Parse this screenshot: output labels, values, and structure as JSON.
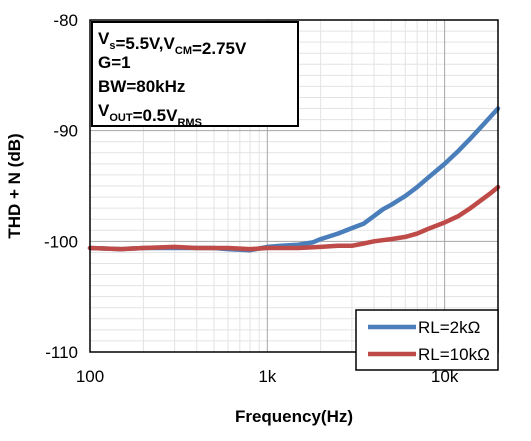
{
  "chart_data": {
    "type": "line",
    "xlabel": "Frequency(Hz)",
    "ylabel": "THD + N (dB)",
    "x_scale": "log",
    "xlim": [
      100,
      20000
    ],
    "ylim": [
      -110,
      -80
    ],
    "x_ticks": [
      {
        "value": 100,
        "label": "100"
      },
      {
        "value": 1000,
        "label": "1k"
      },
      {
        "value": 10000,
        "label": "10k"
      }
    ],
    "y_ticks": [
      {
        "value": -80,
        "label": "-80"
      },
      {
        "value": -90,
        "label": "-90"
      },
      {
        "value": -100,
        "label": "-100"
      },
      {
        "value": -110,
        "label": "-110"
      }
    ],
    "grid": "major and minor",
    "legend_position": "bottom-right",
    "annotation": {
      "lines": [
        [
          {
            "t": "V"
          },
          {
            "t": "s",
            "sub": true
          },
          {
            "t": "=5.5V,V"
          },
          {
            "t": "CM",
            "sub": true
          },
          {
            "t": "=2.75V"
          }
        ],
        [
          {
            "t": "G=1"
          }
        ],
        [
          {
            "t": "BW=80kHz"
          }
        ],
        [
          {
            "t": "V"
          },
          {
            "t": "OUT",
            "sub": true
          },
          {
            "t": "=0.5V"
          },
          {
            "t": "RMS",
            "sub": true
          }
        ]
      ]
    },
    "series": [
      {
        "name": "RL=2kΩ",
        "color": "#4a7ebb",
        "points": [
          [
            100,
            -100.6
          ],
          [
            150,
            -100.7
          ],
          [
            200,
            -100.6
          ],
          [
            300,
            -100.6
          ],
          [
            400,
            -100.6
          ],
          [
            500,
            -100.6
          ],
          [
            600,
            -100.7
          ],
          [
            800,
            -100.8
          ],
          [
            1000,
            -100.5
          ],
          [
            1200,
            -100.4
          ],
          [
            1500,
            -100.3
          ],
          [
            1800,
            -100.1
          ],
          [
            2000,
            -99.8
          ],
          [
            2500,
            -99.3
          ],
          [
            3000,
            -98.8
          ],
          [
            3500,
            -98.4
          ],
          [
            4000,
            -97.7
          ],
          [
            4500,
            -97.1
          ],
          [
            5000,
            -96.7
          ],
          [
            6000,
            -95.9
          ],
          [
            7000,
            -95.1
          ],
          [
            8000,
            -94.3
          ],
          [
            10000,
            -93.0
          ],
          [
            12000,
            -91.8
          ],
          [
            14000,
            -90.7
          ],
          [
            16000,
            -89.7
          ],
          [
            18000,
            -88.8
          ],
          [
            20000,
            -88.0
          ]
        ]
      },
      {
        "name": "RL=10kΩ",
        "color": "#be4b48",
        "points": [
          [
            100,
            -100.6
          ],
          [
            150,
            -100.7
          ],
          [
            200,
            -100.6
          ],
          [
            300,
            -100.5
          ],
          [
            400,
            -100.6
          ],
          [
            500,
            -100.6
          ],
          [
            600,
            -100.6
          ],
          [
            800,
            -100.7
          ],
          [
            1000,
            -100.6
          ],
          [
            1500,
            -100.6
          ],
          [
            2000,
            -100.5
          ],
          [
            2500,
            -100.4
          ],
          [
            3000,
            -100.4
          ],
          [
            3500,
            -100.2
          ],
          [
            4000,
            -100.0
          ],
          [
            5000,
            -99.8
          ],
          [
            6000,
            -99.6
          ],
          [
            7000,
            -99.3
          ],
          [
            8000,
            -98.9
          ],
          [
            10000,
            -98.3
          ],
          [
            12000,
            -97.7
          ],
          [
            14000,
            -97.0
          ],
          [
            16000,
            -96.3
          ],
          [
            18000,
            -95.7
          ],
          [
            20000,
            -95.1
          ]
        ]
      }
    ]
  }
}
